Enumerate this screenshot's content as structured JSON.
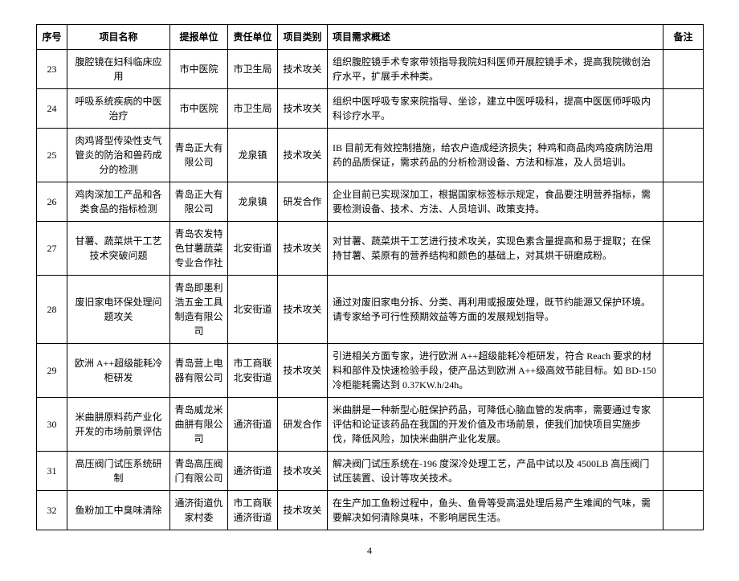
{
  "columns": [
    "序号",
    "项目名称",
    "提报单位",
    "责任单位",
    "项目类别",
    "项目需求概述",
    "备注"
  ],
  "rows": [
    {
      "seq": "23",
      "name": "腹腔镜在妇科临床应用",
      "submit": "市中医院",
      "resp": "市卫生局",
      "type": "技术攻关",
      "desc": "组织腹腔镜手术专家带领指导我院妇科医师开展腔镜手术，提高我院微创治疗水平，扩展手术种类。",
      "note": ""
    },
    {
      "seq": "24",
      "name": "呼吸系统疾病的中医治疗",
      "submit": "市中医院",
      "resp": "市卫生局",
      "type": "技术攻关",
      "desc": "组织中医呼吸专家来院指导、坐诊，建立中医呼吸科，提高中医医师呼吸内科诊疗水平。",
      "note": ""
    },
    {
      "seq": "25",
      "name": "肉鸡肾型传染性支气管炎的防治和兽药成分的检测",
      "submit": "青岛正大有限公司",
      "resp": "龙泉镇",
      "type": "技术攻关",
      "desc": "IB 目前无有效控制措施，给农户造成经济损失；种鸡和商品肉鸡疫病防治用药的品质保证，需求药品的分析检测设备、方法和标准，及人员培训。",
      "note": ""
    },
    {
      "seq": "26",
      "name": "鸡肉深加工产品和各类食品的指标检测",
      "submit": "青岛正大有限公司",
      "resp": "龙泉镇",
      "type": "研发合作",
      "desc": "企业目前已实现深加工，根据国家标签标示规定，食品要注明营养指标，需要检测设备、技术、方法、人员培训、政策支持。",
      "note": ""
    },
    {
      "seq": "27",
      "name": "甘薯、蔬菜烘干工艺技术突破问题",
      "submit": "青岛农发特色甘薯蔬菜专业合作社",
      "resp": "北安街道",
      "type": "技术攻关",
      "desc": "对甘薯、蔬菜烘干工艺进行技术攻关，实现色素含量提高和易于提取；在保持甘薯、菜原有的营养结构和颜色的基础上，对其烘干研磨成粉。",
      "note": ""
    },
    {
      "seq": "28",
      "name": "废旧家电环保处理问题攻关",
      "submit": "青岛即墨利浩五金工具制造有限公司",
      "resp": "北安街道",
      "type": "技术攻关",
      "desc": "通过对废旧家电分拆、分类、再利用或报废处理，既节约能源又保护环境。请专家给予可行性预期效益等方面的发展规划指导。",
      "note": ""
    },
    {
      "seq": "29",
      "name": "欧洲 A++超级能耗冷柜研发",
      "submit": "青岛营上电器有限公司",
      "resp": "市工商联北安街道",
      "type": "技术攻关",
      "desc": "引进相关方面专家，进行欧洲 A++超级能耗冷柜研发，符合 Reach 要求的材料和部件及快速检验手段，使产品达到欧洲 A++级高效节能目标。如 BD-150 冷柜能耗需达到 0.37KW.h/24h。",
      "note": ""
    },
    {
      "seq": "30",
      "name": "米曲肼原料药产业化开发的市场前景评估",
      "submit": "青岛威龙米曲肼有限公司",
      "resp": "通济街道",
      "type": "研发合作",
      "desc": "米曲肼是一种新型心脏保护药品，可降低心脑血管的发病率，需要通过专家评估和论证该药品在我国的开发价值及市场前景，使我们加快项目实施步伐，降低风险，加快米曲肼产业化发展。",
      "note": ""
    },
    {
      "seq": "31",
      "name": "高压阀门试压系统研制",
      "submit": "青岛高压阀门有限公司",
      "resp": "通济街道",
      "type": "技术攻关",
      "desc": "解决阀门试压系统在-196 度深冷处理工艺，产品中试以及 4500LB 高压阀门试压装置、设计等攻关技术。",
      "note": ""
    },
    {
      "seq": "32",
      "name": "鱼粉加工中臭味清除",
      "submit": "通济街道仇家村委",
      "resp": "市工商联通济街道",
      "type": "技术攻关",
      "desc": "在生产加工鱼粉过程中，鱼头、鱼骨等受高温处理后易产生难闻的气味，需要解决如何清除臭味，不影响居民生活。",
      "note": ""
    }
  ],
  "pageNumber": "4"
}
